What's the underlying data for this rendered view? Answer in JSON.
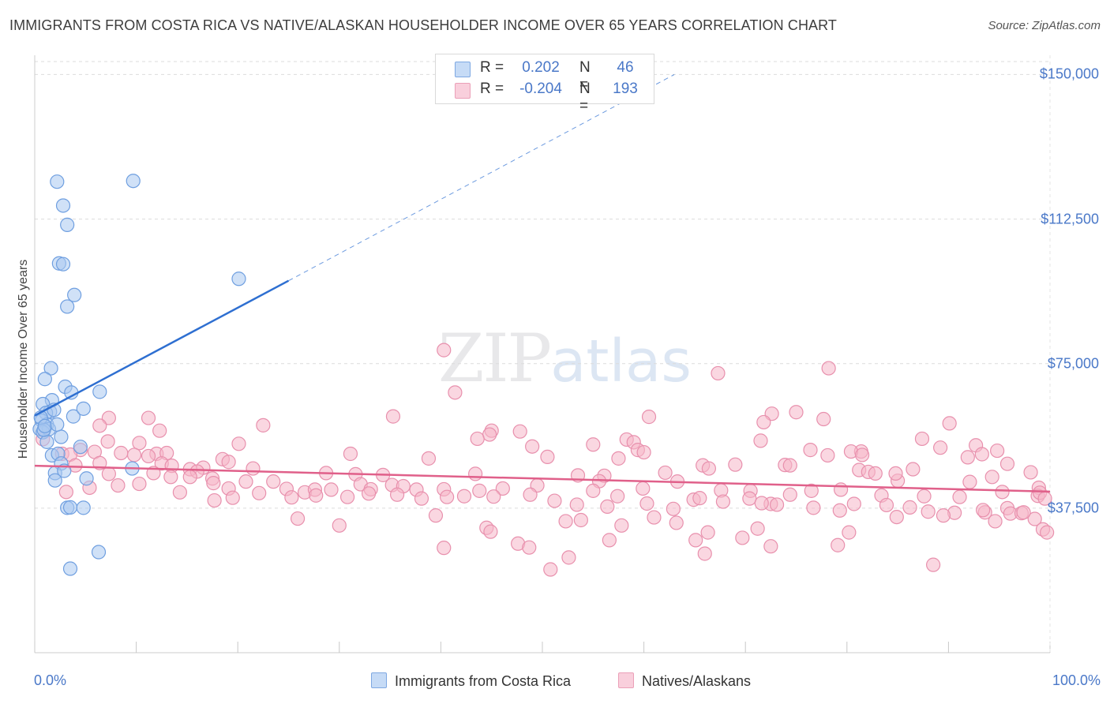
{
  "header": {
    "title": "IMMIGRANTS FROM COSTA RICA VS NATIVE/ALASKAN HOUSEHOLDER INCOME OVER 65 YEARS CORRELATION CHART",
    "source": "Source: ZipAtlas.com"
  },
  "watermark": {
    "zip": "ZIP",
    "atlas": "atlas"
  },
  "legend": {
    "r_label": "R =",
    "n_label": "N =",
    "rows": [
      {
        "r": "0.202",
        "n": "46",
        "color": "#a9c8f0"
      },
      {
        "r": "-0.204",
        "n": "193",
        "color": "#f5b6c9"
      }
    ]
  },
  "colors": {
    "blue_fill": "#a9c8f0",
    "blue_stroke": "#6f9fe0",
    "blue_line": "#2e6fd1",
    "pink_fill": "#f5b6c9",
    "pink_stroke": "#e890ad",
    "pink_line": "#e0608a",
    "tick_text": "#4a78c8",
    "grid": "#dcdcdc"
  },
  "chart_data": {
    "type": "scatter",
    "title": "IMMIGRANTS FROM COSTA RICA VS NATIVE/ALASKAN HOUSEHOLDER INCOME OVER 65 YEARS CORRELATION CHART",
    "xlabel": "",
    "ylabel": "Householder Income Over 65 years",
    "xlim": [
      0,
      100
    ],
    "ylim": [
      0,
      155000
    ],
    "x_tick_labels": [
      "0.0%",
      "100.0%"
    ],
    "y_ticks": [
      37500,
      75000,
      112500,
      150000
    ],
    "y_tick_labels": [
      "$37,500",
      "$75,000",
      "$112,500",
      "$150,000"
    ],
    "grid": true,
    "legend_position": "top-center",
    "series": [
      {
        "name": "Immigrants from Costa Rica",
        "r": 0.202,
        "n": 46,
        "trend": {
          "x0": 0,
          "y0": 61500,
          "x1": 25,
          "y1": 96500,
          "dash_to_x": 63,
          "dash_to_y": 150000
        },
        "points": [
          [
            2.2,
            122200
          ],
          [
            9.7,
            122400
          ],
          [
            2.8,
            116000
          ],
          [
            3.2,
            111000
          ],
          [
            2.4,
            101000
          ],
          [
            2.8,
            100800
          ],
          [
            20.1,
            97000
          ],
          [
            3.9,
            92800
          ],
          [
            3.2,
            89800
          ],
          [
            1.6,
            73800
          ],
          [
            1.0,
            71000
          ],
          [
            3.0,
            69000
          ],
          [
            3.6,
            67500
          ],
          [
            6.4,
            67700
          ],
          [
            1.7,
            65500
          ],
          [
            0.8,
            64500
          ],
          [
            1.5,
            62500
          ],
          [
            1.1,
            62200
          ],
          [
            1.9,
            63000
          ],
          [
            3.8,
            61300
          ],
          [
            4.8,
            63300
          ],
          [
            0.7,
            60200
          ],
          [
            1.2,
            59200
          ],
          [
            0.5,
            58000
          ],
          [
            1.4,
            58000
          ],
          [
            0.8,
            57200
          ],
          [
            2.6,
            56000
          ],
          [
            1.2,
            54700
          ],
          [
            0.9,
            57800
          ],
          [
            1.7,
            51200
          ],
          [
            2.3,
            51600
          ],
          [
            4.5,
            53400
          ],
          [
            2.6,
            49100
          ],
          [
            9.6,
            47800
          ],
          [
            2.0,
            46600
          ],
          [
            2.9,
            47200
          ],
          [
            2.0,
            44700
          ],
          [
            5.1,
            45200
          ],
          [
            3.2,
            37600
          ],
          [
            3.5,
            37700
          ],
          [
            4.8,
            37600
          ],
          [
            6.3,
            26100
          ],
          [
            3.5,
            21800
          ],
          [
            0.6,
            61000
          ],
          [
            1.0,
            58800
          ],
          [
            2.2,
            59200
          ]
        ]
      },
      {
        "name": "Natives/Alaskans",
        "r": -0.204,
        "n": 193,
        "trend": {
          "x0": 0,
          "y0": 48500,
          "x1": 100,
          "y1": 41800
        },
        "points": [
          [
            40.3,
            78500
          ],
          [
            41.4,
            67500
          ],
          [
            67.3,
            72500
          ],
          [
            78.2,
            73800
          ],
          [
            72.6,
            62000
          ],
          [
            75.0,
            62400
          ],
          [
            77.7,
            60600
          ],
          [
            71.8,
            59800
          ],
          [
            90.1,
            59500
          ],
          [
            60.5,
            61200
          ],
          [
            35.3,
            61300
          ],
          [
            7.3,
            60900
          ],
          [
            11.2,
            60900
          ],
          [
            6.4,
            58900
          ],
          [
            22.5,
            59000
          ],
          [
            12.3,
            57600
          ],
          [
            45.0,
            57600
          ],
          [
            47.8,
            57400
          ],
          [
            44.8,
            56600
          ],
          [
            43.6,
            55500
          ],
          [
            58.3,
            55300
          ],
          [
            71.5,
            55000
          ],
          [
            59.0,
            54600
          ],
          [
            0.8,
            55400
          ],
          [
            7.2,
            54800
          ],
          [
            10.3,
            54400
          ],
          [
            20.1,
            54200
          ],
          [
            55.0,
            54000
          ],
          [
            87.4,
            55500
          ],
          [
            92.7,
            53800
          ],
          [
            49.0,
            53500
          ],
          [
            81.4,
            52200
          ],
          [
            89.2,
            53200
          ],
          [
            76.4,
            52600
          ],
          [
            59.4,
            52600
          ],
          [
            4.5,
            52600
          ],
          [
            5.9,
            52100
          ],
          [
            8.5,
            51800
          ],
          [
            2.7,
            51600
          ],
          [
            3.5,
            51400
          ],
          [
            12.0,
            51600
          ],
          [
            13.0,
            51800
          ],
          [
            9.8,
            51300
          ],
          [
            11.2,
            51000
          ],
          [
            31.1,
            51600
          ],
          [
            60.0,
            52000
          ],
          [
            80.4,
            52200
          ],
          [
            78.1,
            51200
          ],
          [
            81.5,
            51300
          ],
          [
            93.3,
            51500
          ],
          [
            94.8,
            52400
          ],
          [
            91.9,
            50700
          ],
          [
            38.8,
            50400
          ],
          [
            50.5,
            50800
          ],
          [
            57.5,
            50400
          ],
          [
            18.5,
            50200
          ],
          [
            19.1,
            49500
          ],
          [
            4.0,
            48600
          ],
          [
            6.4,
            49200
          ],
          [
            12.5,
            49100
          ],
          [
            13.5,
            48500
          ],
          [
            21.5,
            47800
          ],
          [
            16.6,
            48000
          ],
          [
            65.8,
            48600
          ],
          [
            66.4,
            47800
          ],
          [
            69.0,
            48800
          ],
          [
            73.9,
            48700
          ],
          [
            74.4,
            48600
          ],
          [
            95.8,
            49000
          ],
          [
            86.5,
            47600
          ],
          [
            15.3,
            47600
          ],
          [
            16.0,
            47000
          ],
          [
            11.7,
            46600
          ],
          [
            7.3,
            46400
          ],
          [
            17.5,
            45200
          ],
          [
            13.4,
            45600
          ],
          [
            15.3,
            45600
          ],
          [
            28.7,
            46600
          ],
          [
            31.6,
            46300
          ],
          [
            34.3,
            46100
          ],
          [
            43.4,
            46400
          ],
          [
            53.5,
            46000
          ],
          [
            56.1,
            45900
          ],
          [
            62.1,
            46700
          ],
          [
            63.3,
            44400
          ],
          [
            55.6,
            44500
          ],
          [
            81.2,
            47400
          ],
          [
            82.1,
            46900
          ],
          [
            82.8,
            46500
          ],
          [
            85.0,
            44600
          ],
          [
            84.8,
            46500
          ],
          [
            92.1,
            44300
          ],
          [
            94.3,
            45600
          ],
          [
            98.1,
            46800
          ],
          [
            98.9,
            42800
          ],
          [
            10.3,
            43800
          ],
          [
            17.6,
            44000
          ],
          [
            19.1,
            42600
          ],
          [
            20.8,
            44400
          ],
          [
            23.5,
            44400
          ],
          [
            24.8,
            42500
          ],
          [
            25.3,
            40300
          ],
          [
            26.6,
            41600
          ],
          [
            27.6,
            42300
          ],
          [
            29.2,
            42300
          ],
          [
            32.1,
            43700
          ],
          [
            33.1,
            42400
          ],
          [
            35.2,
            43500
          ],
          [
            36.3,
            43200
          ],
          [
            37.6,
            42300
          ],
          [
            40.3,
            42400
          ],
          [
            43.8,
            42000
          ],
          [
            46.1,
            42600
          ],
          [
            49.5,
            43400
          ],
          [
            55.0,
            42000
          ],
          [
            57.4,
            40600
          ],
          [
            59.9,
            42600
          ],
          [
            64.9,
            39700
          ],
          [
            67.6,
            42100
          ],
          [
            70.5,
            42000
          ],
          [
            72.5,
            38600
          ],
          [
            74.4,
            41000
          ],
          [
            76.5,
            42000
          ],
          [
            79.4,
            42300
          ],
          [
            83.4,
            40800
          ],
          [
            87.6,
            40600
          ],
          [
            91.1,
            40400
          ],
          [
            95.3,
            41700
          ],
          [
            98.8,
            40700
          ],
          [
            99.0,
            41500
          ],
          [
            99.5,
            40000
          ],
          [
            5.4,
            42800
          ],
          [
            3.1,
            41700
          ],
          [
            8.2,
            43400
          ],
          [
            14.3,
            41600
          ],
          [
            17.7,
            39500
          ],
          [
            19.5,
            40200
          ],
          [
            22.1,
            41400
          ],
          [
            27.7,
            40800
          ],
          [
            30.8,
            40400
          ],
          [
            32.9,
            41300
          ],
          [
            35.7,
            41000
          ],
          [
            38.1,
            40000
          ],
          [
            40.6,
            40400
          ],
          [
            42.3,
            40600
          ],
          [
            45.2,
            40500
          ],
          [
            48.8,
            41000
          ],
          [
            51.2,
            39400
          ],
          [
            53.4,
            38400
          ],
          [
            56.4,
            37900
          ],
          [
            60.3,
            38700
          ],
          [
            62.9,
            37300
          ],
          [
            65.5,
            40100
          ],
          [
            67.8,
            39200
          ],
          [
            70.4,
            40000
          ],
          [
            71.6,
            38800
          ],
          [
            73.1,
            38400
          ],
          [
            76.7,
            37600
          ],
          [
            79.3,
            36900
          ],
          [
            80.7,
            38600
          ],
          [
            83.9,
            38300
          ],
          [
            86.2,
            37700
          ],
          [
            88.0,
            36600
          ],
          [
            90.6,
            36300
          ],
          [
            93.6,
            36400
          ],
          [
            95.8,
            37500
          ],
          [
            96.1,
            36100
          ],
          [
            97.2,
            36200
          ],
          [
            98.5,
            34700
          ],
          [
            25.9,
            34800
          ],
          [
            30.0,
            33000
          ],
          [
            52.3,
            34100
          ],
          [
            53.8,
            34400
          ],
          [
            57.8,
            33000
          ],
          [
            61.0,
            35100
          ],
          [
            63.2,
            33700
          ],
          [
            71.2,
            32200
          ],
          [
            80.2,
            31200
          ],
          [
            84.9,
            35200
          ],
          [
            89.5,
            35600
          ],
          [
            93.4,
            37000
          ],
          [
            94.6,
            34100
          ],
          [
            97.4,
            36400
          ],
          [
            99.3,
            32000
          ],
          [
            39.5,
            35600
          ],
          [
            44.5,
            32400
          ],
          [
            56.6,
            29200
          ],
          [
            66.3,
            31200
          ],
          [
            47.6,
            28300
          ],
          [
            48.7,
            27300
          ],
          [
            65.1,
            29200
          ],
          [
            69.7,
            29800
          ],
          [
            79.1,
            27900
          ],
          [
            72.5,
            27600
          ],
          [
            40.3,
            27200
          ],
          [
            88.5,
            22800
          ],
          [
            66.0,
            25700
          ],
          [
            52.6,
            24700
          ],
          [
            50.8,
            21600
          ],
          [
            44.9,
            31400
          ],
          [
            99.7,
            31200
          ]
        ]
      }
    ]
  }
}
